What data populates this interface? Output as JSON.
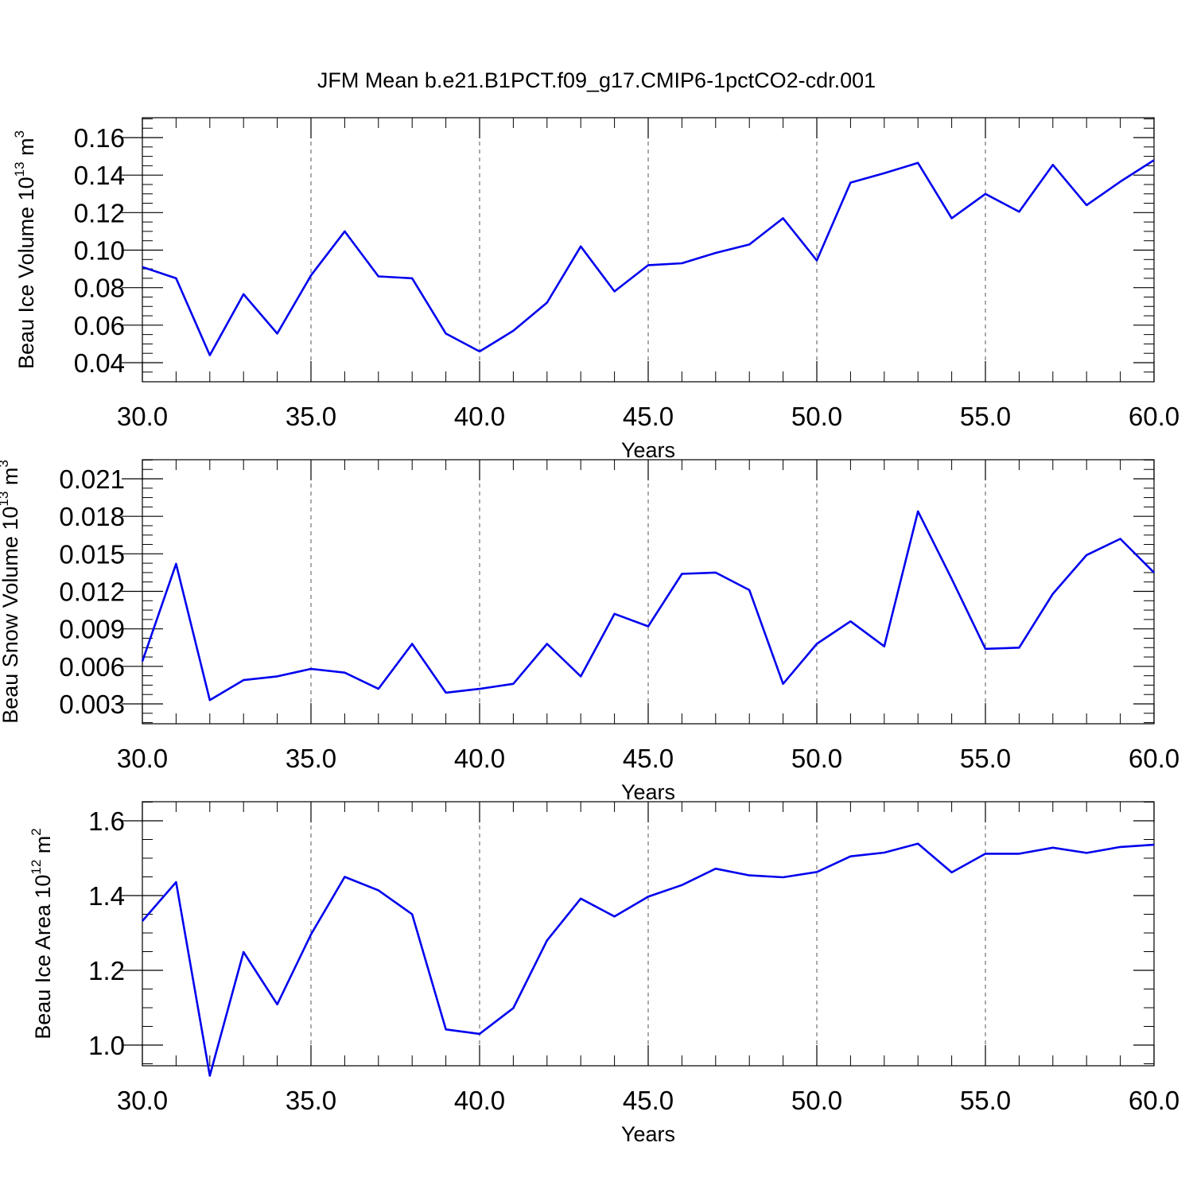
{
  "title": "JFM Mean b.e21.B1PCT.f09_g17.CMIP6-1pctCO2-cdr.001",
  "line_color": "#0000ee",
  "chart_data": [
    {
      "type": "line",
      "xlabel": "Years",
      "ylabel": "Beau Ice Volume 10",
      "ylabel_exp": "13",
      "ylabel_unit": " m",
      "ylabel_unit_exp": "3",
      "xlim": [
        30,
        60
      ],
      "ylim": [
        0.04,
        0.16
      ],
      "y_display_min": 0.04,
      "xticks": [
        30,
        35,
        40,
        45,
        50,
        55,
        60
      ],
      "xtick_labels": [
        "30.0",
        "35.0",
        "40.0",
        "45.0",
        "50.0",
        "55.0",
        "60.0"
      ],
      "yticks": [
        0.04,
        0.06,
        0.08,
        0.1,
        0.12,
        0.14,
        0.16
      ],
      "ytick_labels": [
        "0.04",
        "0.06",
        "0.08",
        "0.10",
        "0.12",
        "0.14",
        "0.16"
      ],
      "grid": "vertical dashed at major x ticks",
      "x": [
        30,
        31,
        32,
        33,
        34,
        35,
        36,
        37,
        38,
        39,
        40,
        41,
        42,
        43,
        44,
        45,
        46,
        47,
        48,
        49,
        50,
        51,
        52,
        53,
        54,
        55,
        56,
        57,
        58,
        59,
        60
      ],
      "y": [
        0.091,
        0.085,
        0.044,
        0.0765,
        0.0555,
        0.0865,
        0.11,
        0.086,
        0.085,
        0.0555,
        0.046,
        0.057,
        0.072,
        0.102,
        0.078,
        0.092,
        0.093,
        0.0985,
        0.103,
        0.117,
        0.0945,
        0.136,
        0.141,
        0.1465,
        0.117,
        0.13,
        0.1205,
        0.1455,
        0.124,
        0.1365,
        0.148
      ]
    },
    {
      "type": "line",
      "xlabel": "Years",
      "ylabel": "Beau Snow Volume 10",
      "ylabel_exp": "13",
      "ylabel_unit": " m",
      "ylabel_unit_exp": "3",
      "xlim": [
        30,
        60
      ],
      "ylim": [
        0.0015,
        0.021
      ],
      "y_display_min": 0.003,
      "xticks": [
        30,
        35,
        40,
        45,
        50,
        55,
        60
      ],
      "xtick_labels": [
        "30.0",
        "35.0",
        "40.0",
        "45.0",
        "50.0",
        "55.0",
        "60.0"
      ],
      "yticks": [
        0.003,
        0.006,
        0.009,
        0.012,
        0.015,
        0.018,
        0.021
      ],
      "ytick_labels": [
        "0.003",
        "0.006",
        "0.009",
        "0.012",
        "0.015",
        "0.018",
        "0.021"
      ],
      "grid": "vertical dashed at major x ticks",
      "x": [
        30,
        31,
        32,
        33,
        34,
        35,
        36,
        37,
        38,
        39,
        40,
        41,
        42,
        43,
        44,
        45,
        46,
        47,
        48,
        49,
        50,
        51,
        52,
        53,
        54,
        55,
        56,
        57,
        58,
        59,
        60
      ],
      "y": [
        0.0064,
        0.0142,
        0.0033,
        0.0049,
        0.0052,
        0.0058,
        0.0055,
        0.0042,
        0.0078,
        0.0039,
        0.0042,
        0.0046,
        0.0078,
        0.0052,
        0.0102,
        0.0092,
        0.0134,
        0.0135,
        0.0121,
        0.0046,
        0.0078,
        0.0096,
        0.0076,
        0.0184,
        0.013,
        0.0074,
        0.0075,
        0.0118,
        0.0149,
        0.0162,
        0.0135
      ]
    },
    {
      "type": "line",
      "xlabel": "Years",
      "ylabel": "Beau Ice Area 10",
      "ylabel_exp": "12",
      "ylabel_unit": " m",
      "ylabel_unit_exp": "2",
      "xlim": [
        30,
        60
      ],
      "ylim": [
        0.9,
        1.6
      ],
      "y_display_min": 0.9,
      "xticks": [
        30,
        35,
        40,
        45,
        50,
        55,
        60
      ],
      "xtick_labels": [
        "30.0",
        "35.0",
        "40.0",
        "45.0",
        "50.0",
        "55.0",
        "60.0"
      ],
      "yticks": [
        1.0,
        1.2,
        1.4,
        1.6
      ],
      "ytick_labels": [
        "1.0",
        "1.2",
        "1.4",
        "1.6"
      ],
      "grid": "vertical dashed at major x ticks",
      "x": [
        30,
        31,
        32,
        33,
        34,
        35,
        36,
        37,
        38,
        39,
        40,
        41,
        42,
        43,
        44,
        45,
        46,
        47,
        48,
        49,
        50,
        51,
        52,
        53,
        54,
        55,
        56,
        57,
        58,
        59,
        60
      ],
      "y": [
        1.332,
        1.436,
        0.918,
        1.249,
        1.109,
        1.296,
        1.45,
        1.414,
        1.35,
        1.042,
        1.03,
        1.099,
        1.28,
        1.392,
        1.344,
        1.397,
        1.428,
        1.472,
        1.454,
        1.449,
        1.463,
        1.505,
        1.515,
        1.539,
        1.462,
        1.512,
        1.512,
        1.528,
        1.514,
        1.53,
        1.536
      ]
    }
  ]
}
